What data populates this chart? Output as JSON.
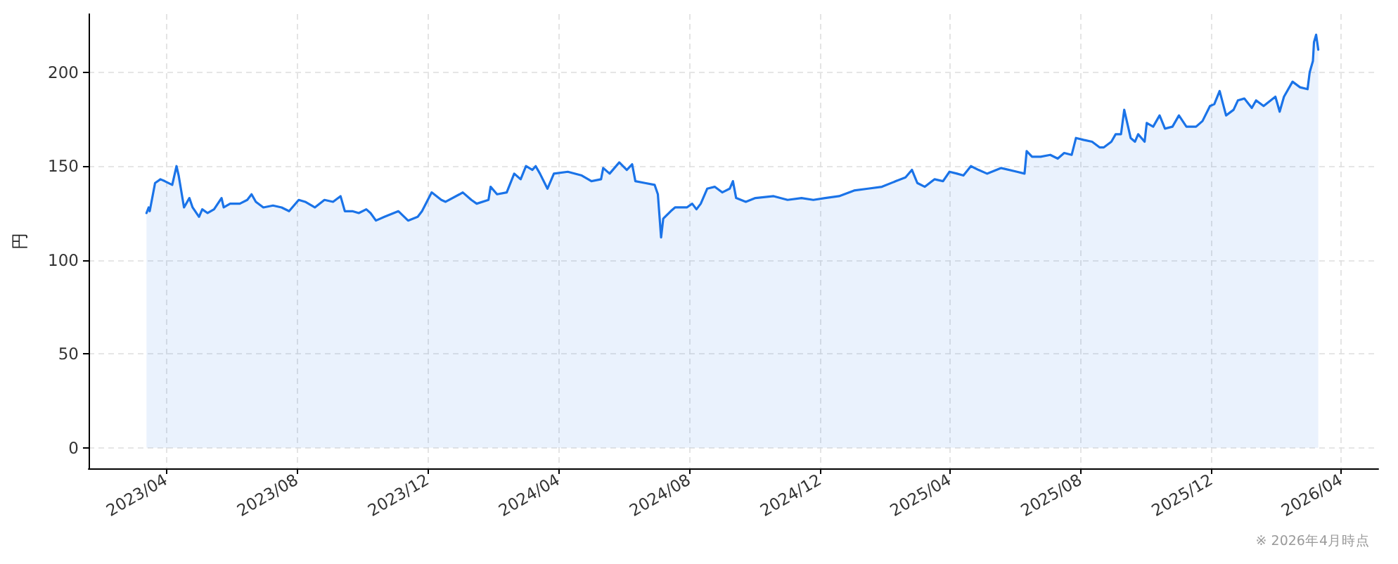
{
  "chart_data": {
    "type": "area",
    "ylabel": "円",
    "annotations": [
      "※ 2026年4月時点"
    ],
    "x": [
      "2023-03-14",
      "2023-03-16",
      "2023-03-17",
      "2023-03-22",
      "2023-03-27",
      "2023-03-31",
      "2023-04-07",
      "2023-04-11",
      "2023-04-13",
      "2023-04-18",
      "2023-04-23",
      "2023-04-26",
      "2023-05-02",
      "2023-05-05",
      "2023-05-10",
      "2023-05-16",
      "2023-05-23",
      "2023-05-25",
      "2023-05-31",
      "2023-06-09",
      "2023-06-16",
      "2023-06-20",
      "2023-06-24",
      "2023-07-01",
      "2023-07-10",
      "2023-07-18",
      "2023-07-25",
      "2023-08-03",
      "2023-08-09",
      "2023-08-18",
      "2023-08-27",
      "2023-09-04",
      "2023-09-11",
      "2023-09-15",
      "2023-09-22",
      "2023-09-28",
      "2023-10-05",
      "2023-10-09",
      "2023-10-14",
      "2023-10-22",
      "2023-11-04",
      "2023-11-13",
      "2023-11-22",
      "2023-11-26",
      "2023-12-05",
      "2023-12-14",
      "2023-12-18",
      "2023-12-31",
      "2024-01-03",
      "2024-01-11",
      "2024-01-16",
      "2024-01-27",
      "2024-01-29",
      "2024-02-04",
      "2024-02-13",
      "2024-02-20",
      "2024-02-26",
      "2024-03-02",
      "2024-03-08",
      "2024-03-11",
      "2024-03-15",
      "2024-03-22",
      "2024-03-28",
      "2024-04-10",
      "2024-04-23",
      "2024-05-02",
      "2024-05-11",
      "2024-05-13",
      "2024-05-19",
      "2024-05-28",
      "2024-06-04",
      "2024-06-09",
      "2024-06-12",
      "2024-06-21",
      "2024-06-30",
      "2024-07-03",
      "2024-07-06",
      "2024-07-08",
      "2024-07-15",
      "2024-07-19",
      "2024-07-30",
      "2024-08-04",
      "2024-08-08",
      "2024-08-12",
      "2024-08-18",
      "2024-08-25",
      "2024-09-01",
      "2024-09-08",
      "2024-09-11",
      "2024-09-14",
      "2024-09-23",
      "2024-10-02",
      "2024-10-19",
      "2024-11-01",
      "2024-11-14",
      "2024-11-25",
      "2024-12-06",
      "2024-12-19",
      "2025-01-02",
      "2025-01-15",
      "2025-01-28",
      "2025-02-10",
      "2025-02-19",
      "2025-02-25",
      "2025-03-02",
      "2025-03-09",
      "2025-03-18",
      "2025-03-26",
      "2025-04-01",
      "2025-04-08",
      "2025-04-14",
      "2025-04-21",
      "2025-04-28",
      "2025-05-06",
      "2025-05-19",
      "2025-06-03",
      "2025-06-10",
      "2025-06-12",
      "2025-06-17",
      "2025-06-25",
      "2025-07-04",
      "2025-07-11",
      "2025-07-17",
      "2025-07-24",
      "2025-07-28",
      "2025-08-04",
      "2025-08-12",
      "2025-08-19",
      "2025-08-23",
      "2025-08-30",
      "2025-09-03",
      "2025-09-08",
      "2025-09-11",
      "2025-09-17",
      "2025-09-21",
      "2025-09-24",
      "2025-09-30",
      "2025-10-02",
      "2025-10-08",
      "2025-10-14",
      "2025-10-19",
      "2025-10-26",
      "2025-11-01",
      "2025-11-08",
      "2025-11-17",
      "2025-11-23",
      "2025-11-30",
      "2025-12-04",
      "2025-12-09",
      "2025-12-15",
      "2025-12-22",
      "2025-12-26",
      "2026-01-01",
      "2026-01-08",
      "2026-01-12",
      "2026-01-19",
      "2026-01-30",
      "2026-02-03",
      "2026-02-07",
      "2026-02-15",
      "2026-02-22",
      "2026-03-01",
      "2026-03-03",
      "2026-03-06",
      "2026-03-07",
      "2026-03-09",
      "2026-03-11"
    ],
    "values": [
      125,
      128,
      126,
      141,
      143,
      142,
      140,
      150,
      145,
      128,
      133,
      128,
      123,
      127,
      125,
      127,
      133,
      128,
      130,
      130,
      132,
      135,
      131,
      128,
      129,
      128,
      126,
      132,
      131,
      128,
      132,
      131,
      134,
      126,
      126,
      125,
      127,
      125,
      121,
      123,
      126,
      121,
      123,
      126,
      136,
      132,
      131,
      135,
      136,
      132,
      130,
      132,
      139,
      135,
      136,
      146,
      143,
      150,
      148,
      150,
      146,
      138,
      146,
      147,
      145,
      142,
      143,
      149,
      146,
      152,
      148,
      151,
      142,
      141,
      140,
      135,
      112,
      122,
      126,
      128,
      128,
      130,
      127,
      130,
      138,
      139,
      136,
      138,
      142,
      133,
      131,
      133,
      134,
      132,
      133,
      132,
      133,
      134,
      137,
      138,
      139,
      142,
      144,
      148,
      141,
      139,
      143,
      142,
      147,
      146,
      145,
      150,
      148,
      146,
      149,
      147,
      146,
      158,
      155,
      155,
      156,
      154,
      157,
      156,
      165,
      164,
      163,
      160,
      160,
      163,
      167,
      167,
      180,
      165,
      163,
      167,
      163,
      173,
      171,
      177,
      170,
      171,
      177,
      171,
      171,
      174,
      182,
      183,
      190,
      177,
      180,
      185,
      186,
      181,
      185,
      182,
      187,
      179,
      187,
      195,
      192,
      191,
      200,
      206,
      216,
      220,
      212
    ],
    "color": "#1a73e8",
    "xlim": [
      "2023-01-19",
      "2026-05-06"
    ],
    "xticks": [
      {
        "value": "2023-04",
        "label": "2023/04"
      },
      {
        "value": "2023-08",
        "label": "2023/08"
      },
      {
        "value": "2023-12",
        "label": "2023/12"
      },
      {
        "value": "2024-04",
        "label": "2024/04"
      },
      {
        "value": "2024-08",
        "label": "2024/08"
      },
      {
        "value": "2024-12",
        "label": "2024/12"
      },
      {
        "value": "2025-04",
        "label": "2025/04"
      },
      {
        "value": "2025-08",
        "label": "2025/08"
      },
      {
        "value": "2025-12",
        "label": "2025/12"
      },
      {
        "value": "2026-04",
        "label": "2026/04"
      }
    ],
    "ylim": [
      -11,
      231
    ],
    "yticks": [
      0,
      50,
      100,
      150,
      200
    ],
    "grid": true,
    "marker": "none"
  }
}
